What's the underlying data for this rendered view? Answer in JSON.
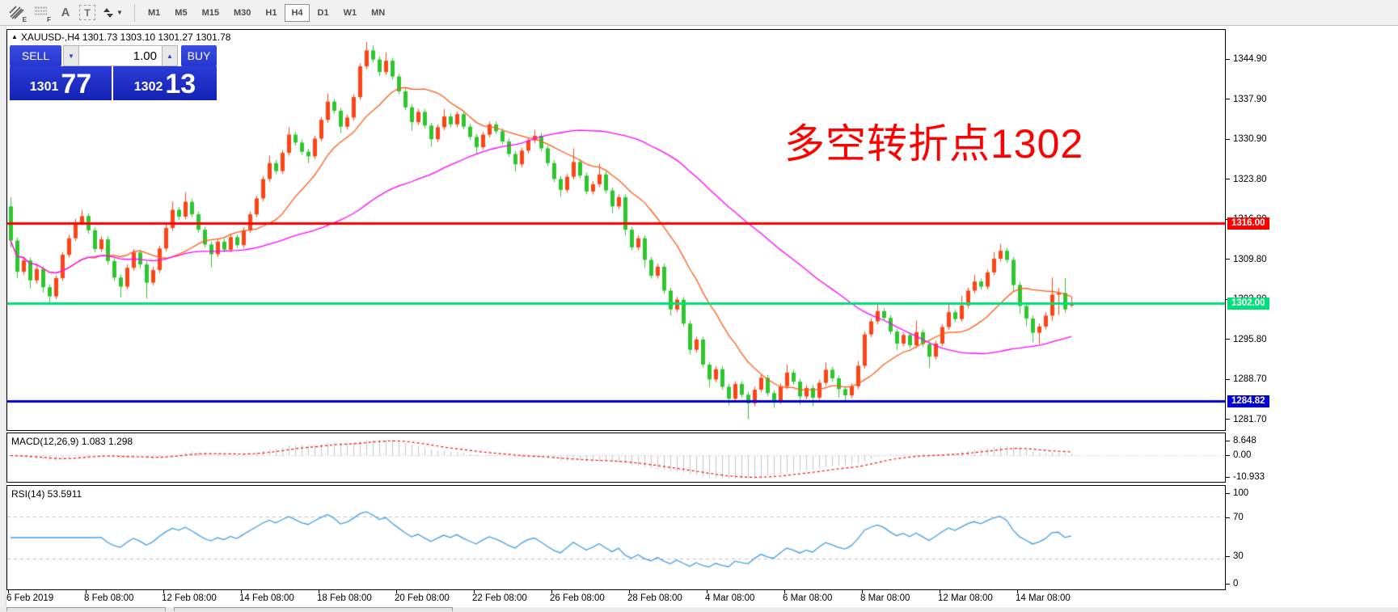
{
  "toolbar": {
    "icon_subscripts": {
      "expert": "E",
      "grid": "F"
    },
    "text_tool_label": "A",
    "label_tool_letter": "T",
    "timeframes": [
      "M1",
      "M5",
      "M15",
      "M30",
      "H1",
      "H4",
      "D1",
      "W1",
      "MN"
    ],
    "active_timeframe": "H4"
  },
  "chart": {
    "title": "XAUUSD-,H4  1301.73 1303.10 1301.27 1301.78",
    "trade_panel": {
      "sell_label": "SELL",
      "buy_label": "BUY",
      "volume": "1.00",
      "bid_major": "1301",
      "bid_minor": "77",
      "ask_major": "1302",
      "ask_minor": "13"
    },
    "annotation": {
      "text": "多空转折点1302",
      "color": "#ff0000"
    }
  },
  "macd_panel": {
    "label": "MACD(12,26,9) 1.083 1.298",
    "scale_labels": [
      "8.648",
      "0.00",
      "-10.933"
    ]
  },
  "rsi_panel": {
    "label": "RSI(14) 53.5911",
    "scale_labels": [
      "100",
      "70",
      "30",
      "0"
    ]
  },
  "chart_data": {
    "type": "candlestick",
    "symbol": "XAUUSD-",
    "timeframe": "H4",
    "title": "XAUUSD-,H4  1301.73 1303.10 1301.27 1301.78",
    "ylim": [
      1279.6,
      1350.0
    ],
    "y_axis_ticks": [
      "1344.90",
      "1337.90",
      "1330.90",
      "1323.80",
      "1316.80",
      "1309.80",
      "1302.80",
      "1295.80",
      "1288.70",
      "1281.70"
    ],
    "time_ticks": {
      "labels": [
        "6 Feb 2019",
        "8 Feb 08:00",
        "12 Feb 08:00",
        "14 Feb 08:00",
        "18 Feb 08:00",
        "20 Feb 08:00",
        "22 Feb 08:00",
        "26 Feb 08:00",
        "28 Feb 08:00",
        "4 Mar 08:00",
        "6 Mar 08:00",
        "8 Mar 08:00",
        "12 Mar 08:00",
        "14 Mar 08:00"
      ],
      "candle_indices": [
        0,
        12,
        24,
        36,
        48,
        60,
        72,
        84,
        96,
        108,
        120,
        132,
        144,
        156
      ]
    },
    "candle_colors": {
      "up": "#fd4415",
      "down": "#2ec62e"
    },
    "moving_averages": [
      {
        "name": "fast-ma",
        "period": 13,
        "color": "#ff5a1a"
      },
      {
        "name": "slow-ma",
        "period": 50,
        "color": "#ff00ff"
      }
    ],
    "horizontal_lines": [
      {
        "price": 1316.0,
        "label": "1316.00",
        "color": "#ff0000"
      },
      {
        "price": 1302.0,
        "label": "1302.00",
        "color": "#00e07a"
      },
      {
        "price": 1284.82,
        "label": "1284.82",
        "color": "#0000d4"
      }
    ],
    "indicators": [
      {
        "type": "MACD",
        "params": [
          12,
          26,
          9
        ],
        "current": [
          1.083,
          1.298
        ],
        "scale": [
          8.648,
          0.0,
          -10.933
        ],
        "histogram_color": "#c4c4c4",
        "signal_color": "#ff0000"
      },
      {
        "type": "RSI",
        "params": [
          14
        ],
        "current": 53.5911,
        "levels": [
          70,
          30
        ],
        "scale": [
          100,
          70,
          30,
          0
        ],
        "line_color": "#3f9de6"
      }
    ],
    "ohlc": [
      [
        1319.0,
        1320.6,
        1311.8,
        1313.0
      ],
      [
        1313.0,
        1313.5,
        1306.4,
        1307.5
      ],
      [
        1307.5,
        1310.2,
        1307.0,
        1309.5
      ],
      [
        1309.5,
        1310.0,
        1304.6,
        1306.0
      ],
      [
        1306.0,
        1308.6,
        1305.4,
        1308.0
      ],
      [
        1308.0,
        1308.5,
        1303.9,
        1304.8
      ],
      [
        1304.8,
        1305.3,
        1302.0,
        1303.2
      ],
      [
        1303.2,
        1306.9,
        1302.7,
        1306.4
      ],
      [
        1306.4,
        1311.0,
        1305.9,
        1310.5
      ],
      [
        1310.5,
        1314.0,
        1310.0,
        1313.4
      ],
      [
        1313.4,
        1316.8,
        1312.9,
        1316.2
      ],
      [
        1316.2,
        1318.4,
        1315.7,
        1317.3
      ],
      [
        1317.3,
        1317.8,
        1314.2,
        1314.8
      ],
      [
        1314.8,
        1315.3,
        1310.9,
        1311.5
      ],
      [
        1311.5,
        1313.8,
        1311.0,
        1313.2
      ],
      [
        1313.2,
        1313.7,
        1308.8,
        1309.4
      ],
      [
        1309.4,
        1309.9,
        1305.9,
        1306.5
      ],
      [
        1306.5,
        1307.0,
        1303.0,
        1304.9
      ],
      [
        1304.9,
        1308.8,
        1304.4,
        1308.2
      ],
      [
        1308.2,
        1311.5,
        1307.7,
        1310.9
      ],
      [
        1310.9,
        1311.4,
        1308.2,
        1308.8
      ],
      [
        1308.8,
        1309.3,
        1302.8,
        1305.6
      ],
      [
        1305.6,
        1308.4,
        1305.1,
        1307.8
      ],
      [
        1307.8,
        1312.1,
        1307.3,
        1311.6
      ],
      [
        1311.6,
        1315.8,
        1311.1,
        1315.2
      ],
      [
        1315.2,
        1319.8,
        1314.7,
        1318.4
      ],
      [
        1318.4,
        1318.9,
        1316.6,
        1317.2
      ],
      [
        1317.2,
        1321.5,
        1316.7,
        1319.8
      ],
      [
        1319.8,
        1320.3,
        1317.1,
        1317.6
      ],
      [
        1317.6,
        1318.1,
        1314.4,
        1314.9
      ],
      [
        1314.9,
        1315.4,
        1311.8,
        1312.3
      ],
      [
        1312.3,
        1312.8,
        1308.3,
        1310.6
      ],
      [
        1310.6,
        1313.3,
        1310.1,
        1312.8
      ],
      [
        1312.8,
        1313.3,
        1310.9,
        1311.4
      ],
      [
        1311.4,
        1314.1,
        1310.9,
        1313.6
      ],
      [
        1313.6,
        1314.1,
        1311.7,
        1312.2
      ],
      [
        1312.2,
        1315.3,
        1311.7,
        1314.8
      ],
      [
        1314.8,
        1318.1,
        1314.3,
        1317.6
      ],
      [
        1317.6,
        1320.9,
        1317.1,
        1320.4
      ],
      [
        1320.4,
        1324.3,
        1319.9,
        1323.8
      ],
      [
        1323.8,
        1327.9,
        1323.3,
        1326.6
      ],
      [
        1326.6,
        1327.1,
        1324.7,
        1325.2
      ],
      [
        1325.2,
        1328.9,
        1324.7,
        1328.4
      ],
      [
        1328.4,
        1332.9,
        1327.9,
        1331.6
      ],
      [
        1331.6,
        1332.1,
        1329.7,
        1330.2
      ],
      [
        1330.2,
        1330.7,
        1328.1,
        1328.6
      ],
      [
        1328.6,
        1329.1,
        1326.6,
        1327.8
      ],
      [
        1327.8,
        1331.4,
        1327.3,
        1330.9
      ],
      [
        1330.9,
        1334.7,
        1330.4,
        1334.2
      ],
      [
        1334.2,
        1338.8,
        1333.7,
        1337.4
      ],
      [
        1337.4,
        1337.9,
        1335.3,
        1335.8
      ],
      [
        1335.8,
        1336.3,
        1331.9,
        1333.0
      ],
      [
        1333.0,
        1335.1,
        1332.5,
        1334.6
      ],
      [
        1334.6,
        1338.7,
        1334.1,
        1338.2
      ],
      [
        1338.2,
        1344.1,
        1337.7,
        1343.6
      ],
      [
        1343.6,
        1347.9,
        1343.1,
        1346.4
      ],
      [
        1346.4,
        1347.3,
        1344.3,
        1344.8
      ],
      [
        1344.8,
        1345.3,
        1341.9,
        1342.6
      ],
      [
        1342.6,
        1346.0,
        1342.1,
        1344.6
      ],
      [
        1344.6,
        1345.1,
        1341.3,
        1341.8
      ],
      [
        1341.8,
        1342.3,
        1338.7,
        1339.2
      ],
      [
        1339.2,
        1339.7,
        1335.9,
        1336.4
      ],
      [
        1336.4,
        1336.9,
        1332.3,
        1333.8
      ],
      [
        1333.8,
        1336.1,
        1333.3,
        1335.6
      ],
      [
        1335.6,
        1336.1,
        1332.7,
        1333.2
      ],
      [
        1333.2,
        1333.7,
        1329.5,
        1330.8
      ],
      [
        1330.8,
        1333.4,
        1330.3,
        1332.9
      ],
      [
        1332.9,
        1336.1,
        1332.4,
        1334.8
      ],
      [
        1334.8,
        1335.3,
        1332.9,
        1333.4
      ],
      [
        1333.4,
        1335.7,
        1332.9,
        1335.2
      ],
      [
        1335.2,
        1335.7,
        1332.5,
        1333.0
      ],
      [
        1333.0,
        1333.5,
        1330.7,
        1331.2
      ],
      [
        1331.2,
        1331.7,
        1328.1,
        1329.4
      ],
      [
        1329.4,
        1332.1,
        1328.9,
        1331.6
      ],
      [
        1331.6,
        1333.9,
        1331.1,
        1333.4
      ],
      [
        1333.4,
        1333.9,
        1331.7,
        1332.2
      ],
      [
        1332.2,
        1332.7,
        1329.9,
        1330.4
      ],
      [
        1330.4,
        1330.9,
        1327.7,
        1328.2
      ],
      [
        1328.2,
        1328.7,
        1325.1,
        1326.4
      ],
      [
        1326.4,
        1329.3,
        1325.9,
        1328.8
      ],
      [
        1328.8,
        1331.1,
        1328.3,
        1330.6
      ],
      [
        1330.6,
        1332.4,
        1330.1,
        1331.4
      ],
      [
        1331.4,
        1331.9,
        1328.7,
        1329.2
      ],
      [
        1329.2,
        1329.7,
        1326.1,
        1326.6
      ],
      [
        1326.6,
        1327.1,
        1323.3,
        1323.8
      ],
      [
        1323.8,
        1324.3,
        1320.7,
        1321.9
      ],
      [
        1321.9,
        1324.7,
        1321.4,
        1324.2
      ],
      [
        1324.2,
        1329.2,
        1323.7,
        1326.8
      ],
      [
        1326.8,
        1327.3,
        1323.9,
        1324.4
      ],
      [
        1324.4,
        1324.9,
        1321.1,
        1321.6
      ],
      [
        1321.6,
        1323.4,
        1321.1,
        1322.9
      ],
      [
        1322.9,
        1326.5,
        1322.4,
        1324.6
      ],
      [
        1324.6,
        1325.1,
        1321.3,
        1321.8
      ],
      [
        1321.8,
        1322.3,
        1317.8,
        1319.0
      ],
      [
        1319.0,
        1321.1,
        1318.5,
        1320.6
      ],
      [
        1320.6,
        1321.1,
        1313.9,
        1314.9
      ],
      [
        1314.9,
        1315.4,
        1311.3,
        1311.8
      ],
      [
        1311.8,
        1313.9,
        1311.3,
        1313.4
      ],
      [
        1313.4,
        1313.9,
        1308.2,
        1309.6
      ],
      [
        1309.6,
        1310.1,
        1306.3,
        1306.8
      ],
      [
        1306.8,
        1308.9,
        1306.3,
        1308.4
      ],
      [
        1308.4,
        1308.9,
        1303.7,
        1304.2
      ],
      [
        1304.2,
        1304.7,
        1299.8,
        1300.9
      ],
      [
        1300.9,
        1303.1,
        1300.4,
        1302.6
      ],
      [
        1302.6,
        1303.1,
        1297.9,
        1298.4
      ],
      [
        1298.4,
        1298.9,
        1293.0,
        1293.8
      ],
      [
        1293.8,
        1296.1,
        1293.3,
        1295.6
      ],
      [
        1295.6,
        1296.1,
        1290.7,
        1291.2
      ],
      [
        1291.2,
        1291.7,
        1287.2,
        1288.6
      ],
      [
        1288.6,
        1290.9,
        1288.1,
        1290.4
      ],
      [
        1290.4,
        1290.9,
        1286.8,
        1287.3
      ],
      [
        1287.3,
        1287.8,
        1284.1,
        1285.2
      ],
      [
        1285.2,
        1288.3,
        1284.7,
        1287.8
      ],
      [
        1287.8,
        1288.3,
        1285.4,
        1285.9
      ],
      [
        1285.9,
        1286.4,
        1281.6,
        1284.4
      ],
      [
        1284.4,
        1287.3,
        1283.9,
        1286.8
      ],
      [
        1286.8,
        1289.4,
        1286.3,
        1288.9
      ],
      [
        1288.9,
        1289.4,
        1285.7,
        1286.2
      ],
      [
        1286.2,
        1286.7,
        1283.6,
        1284.8
      ],
      [
        1284.8,
        1287.9,
        1284.3,
        1287.4
      ],
      [
        1287.4,
        1291.2,
        1286.9,
        1289.8
      ],
      [
        1289.8,
        1290.3,
        1287.7,
        1288.2
      ],
      [
        1288.2,
        1288.7,
        1284.2,
        1285.6
      ],
      [
        1285.6,
        1287.6,
        1285.1,
        1287.1
      ],
      [
        1287.1,
        1287.6,
        1283.9,
        1285.4
      ],
      [
        1285.4,
        1288.5,
        1284.9,
        1288.0
      ],
      [
        1288.0,
        1291.6,
        1287.5,
        1290.3
      ],
      [
        1290.3,
        1290.8,
        1288.3,
        1288.8
      ],
      [
        1288.8,
        1289.3,
        1285.4,
        1286.9
      ],
      [
        1286.9,
        1287.4,
        1284.6,
        1285.8
      ],
      [
        1285.8,
        1287.9,
        1285.3,
        1287.4
      ],
      [
        1287.4,
        1291.8,
        1286.9,
        1291.0
      ],
      [
        1291.0,
        1297.0,
        1290.5,
        1296.5
      ],
      [
        1296.5,
        1299.3,
        1296.0,
        1298.8
      ],
      [
        1298.8,
        1302.1,
        1298.3,
        1300.6
      ],
      [
        1300.6,
        1301.1,
        1298.9,
        1299.4
      ],
      [
        1299.4,
        1299.9,
        1296.5,
        1297.0
      ],
      [
        1297.0,
        1297.5,
        1293.8,
        1294.9
      ],
      [
        1294.9,
        1296.9,
        1294.4,
        1296.4
      ],
      [
        1296.4,
        1296.9,
        1294.1,
        1294.6
      ],
      [
        1294.6,
        1298.9,
        1294.1,
        1296.9
      ],
      [
        1296.9,
        1297.4,
        1294.3,
        1294.8
      ],
      [
        1294.8,
        1295.3,
        1290.6,
        1292.6
      ],
      [
        1292.6,
        1295.4,
        1292.1,
        1294.9
      ],
      [
        1294.9,
        1298.3,
        1294.4,
        1297.8
      ],
      [
        1297.8,
        1301.9,
        1297.3,
        1300.4
      ],
      [
        1300.4,
        1300.9,
        1298.7,
        1299.2
      ],
      [
        1299.2,
        1303.3,
        1298.7,
        1301.6
      ],
      [
        1301.6,
        1304.7,
        1301.1,
        1304.2
      ],
      [
        1304.2,
        1307.0,
        1303.7,
        1305.8
      ],
      [
        1305.8,
        1306.3,
        1304.4,
        1304.9
      ],
      [
        1304.9,
        1307.9,
        1304.4,
        1307.4
      ],
      [
        1307.4,
        1311.0,
        1306.9,
        1309.8
      ],
      [
        1309.8,
        1312.4,
        1309.3,
        1311.2
      ],
      [
        1311.2,
        1311.7,
        1309.1,
        1309.6
      ],
      [
        1309.6,
        1310.1,
        1304.0,
        1305.2
      ],
      [
        1305.2,
        1305.7,
        1300.2,
        1301.5
      ],
      [
        1301.5,
        1302.0,
        1298.0,
        1299.3
      ],
      [
        1299.3,
        1299.8,
        1295.1,
        1296.8
      ],
      [
        1296.8,
        1298.4,
        1294.8,
        1297.9
      ],
      [
        1297.9,
        1300.4,
        1297.4,
        1299.8
      ],
      [
        1299.8,
        1306.5,
        1298.9,
        1303.5
      ],
      [
        1303.5,
        1304.6,
        1299.9,
        1303.8
      ],
      [
        1303.8,
        1306.4,
        1300.3,
        1300.9
      ],
      [
        1301.73,
        1303.1,
        1301.27,
        1301.78
      ]
    ]
  }
}
